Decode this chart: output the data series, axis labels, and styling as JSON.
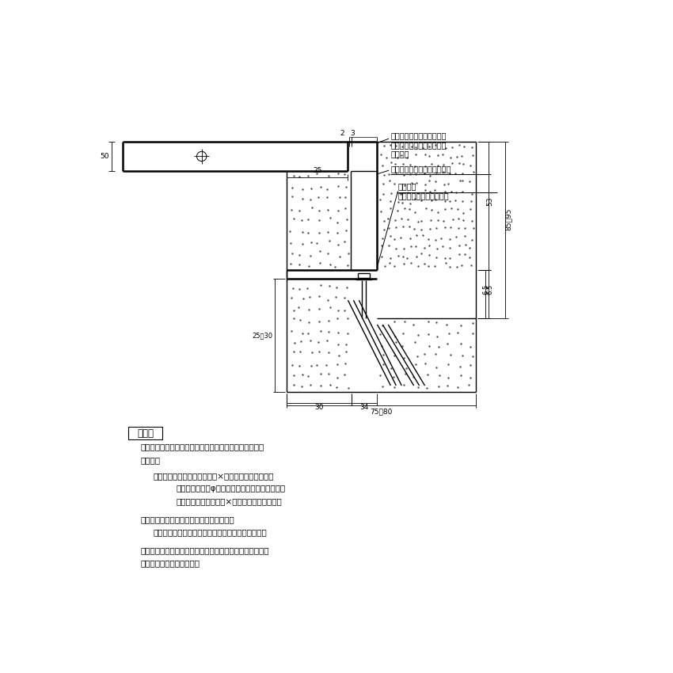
{
  "bg_color": "#ffffff",
  "line_color": "#000000",
  "fig_width": 8.5,
  "fig_height": 8.5,
  "annotations": {
    "grating_label": [
      "ステンレス製グレーチング",
      "滑り止め模様付　集水桝用",
      "ＳＭＱＷ"
    ],
    "frame_label": "ステンレス製受枠ＲＬ－５０",
    "anchor_label": [
      "アンカー",
      "ｔ＝２．０（ＳＥＣＣ）"
    ],
    "dim_2": "2",
    "dim_3": "3",
    "dim_25": "25",
    "dim_50": "50",
    "dim_53": "53",
    "dim_65": "6.5",
    "dim_30": "30",
    "dim_34": "34",
    "dim_25_30": "25～30",
    "dim_75_80": "75～80",
    "dim_85_95": "85～95"
  },
  "spec": {
    "title": "仕　様",
    "lines": [
      [
        "ステンレス製グレーチング　滑り止め模様付　集水桝用",
        90,
        600
      ],
      [
        "ＳＭＱＷ",
        90,
        622
      ],
      [
        "材質：メインバー　　ＦＢ４×５０（ＳＵＳ３０４）",
        110,
        648
      ],
      [
        "クロスバー　　φ６　　　　　（ＳＵＳ３０４）",
        148,
        669
      ],
      [
        "サイドバー　　ＦＢ４×５０（ＳＵＳ３０４）",
        148,
        690
      ],
      [
        "ステンレス製受枠　ＲＬ－５０（四方枠）",
        90,
        720
      ],
      [
        "材質：ステンレス鋼板ｔ＝３．０（ＳＵＳ３０４）",
        110,
        741
      ],
      [
        "施工場所の状況に合わせて、アンカーをプライヤー等で折",
        90,
        770
      ],
      [
        "り曲げてご使用ください。",
        90,
        791
      ]
    ]
  }
}
